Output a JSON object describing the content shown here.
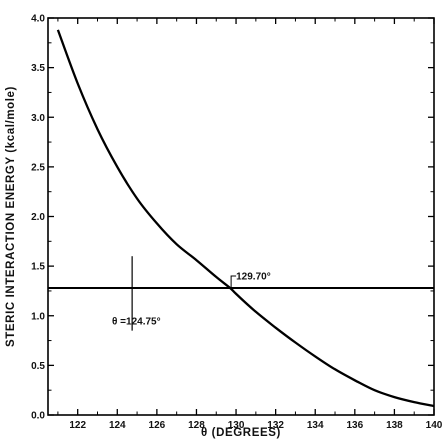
{
  "chart_data": {
    "type": "line",
    "title": "",
    "xlabel": "θ (DEGREES)",
    "ylabel": "STERIC INTERACTION ENERGY (kcal/mole)",
    "xlim": [
      120.5,
      140
    ],
    "ylim": [
      0,
      4.0
    ],
    "x_ticks": [
      122,
      124,
      126,
      128,
      130,
      132,
      134,
      136,
      138,
      140
    ],
    "x_tick_labels": [
      "122",
      "124",
      "126",
      "128",
      "130",
      "132",
      "134",
      "136",
      "138",
      "140"
    ],
    "y_ticks": [
      0,
      0.5,
      1.0,
      1.5,
      2.0,
      2.5,
      3.0,
      3.5,
      4.0
    ],
    "y_tick_labels": [
      "0.0",
      "0.5",
      "1.0",
      "1.5",
      "2.0",
      "2.5",
      "3.0",
      "3.5",
      "4.0"
    ],
    "grid": false,
    "series": [
      {
        "name": "",
        "x": [
          121.0,
          122.0,
          123.0,
          124.0,
          125.0,
          126.0,
          127.0,
          128.0,
          129.0,
          129.7,
          130.0,
          131.0,
          132.0,
          133.0,
          134.0,
          135.0,
          136.0,
          137.0,
          138.0,
          139.0,
          140.0
        ],
        "y": [
          3.88,
          3.34,
          2.88,
          2.5,
          2.18,
          1.93,
          1.72,
          1.56,
          1.39,
          1.28,
          1.22,
          1.04,
          0.88,
          0.73,
          0.59,
          0.46,
          0.35,
          0.25,
          0.18,
          0.13,
          0.09
        ]
      }
    ],
    "reference_line": {
      "y": 1.28
    },
    "annotations": {
      "theta_marker": {
        "x": 124.75,
        "label": "θ =124.75°"
      },
      "intersection": {
        "x": 129.7,
        "label": "129.70°"
      }
    }
  }
}
